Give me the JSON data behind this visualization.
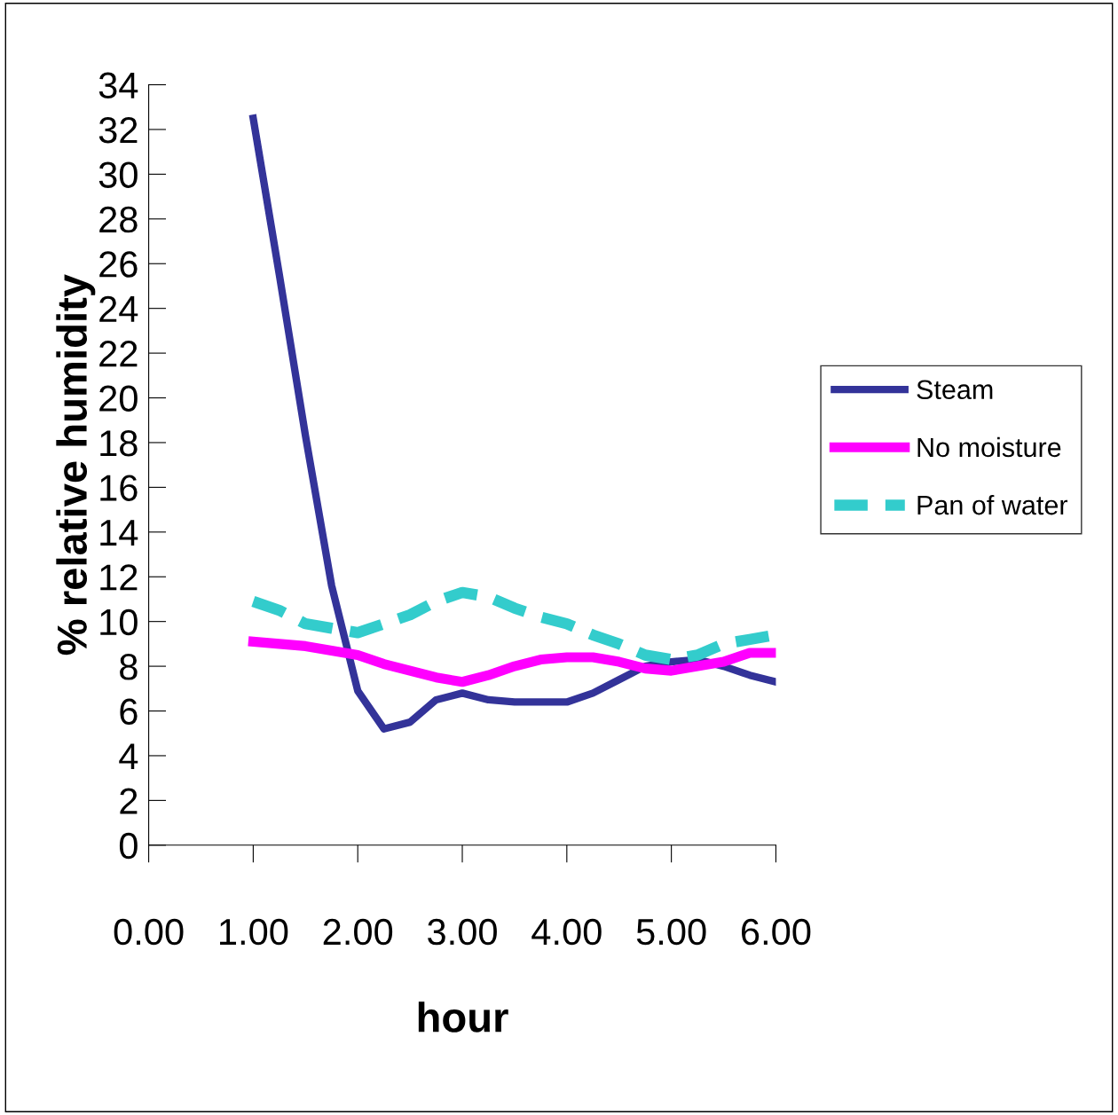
{
  "chart_data": {
    "type": "line",
    "xlabel": "hour",
    "ylabel": "% relative humidity",
    "x": [
      1.0,
      1.25,
      1.5,
      1.75,
      2.0,
      2.25,
      2.5,
      2.75,
      3.0,
      3.25,
      3.5,
      3.75,
      4.0,
      4.25,
      4.5,
      4.75,
      5.0,
      5.25,
      5.5,
      5.75,
      6.0
    ],
    "series": [
      {
        "name": "Steam",
        "color": "#333399",
        "line_style": "solid",
        "values": [
          32.5,
          25.5,
          18.3,
          11.6,
          6.9,
          5.2,
          5.5,
          6.5,
          6.8,
          6.5,
          6.4,
          6.4,
          6.4,
          6.8,
          7.4,
          8.0,
          8.2,
          8.3,
          8.0,
          7.6,
          7.3
        ]
      },
      {
        "name": "No moisture",
        "color": "#ff00ff",
        "line_style": "solid",
        "values": [
          9.1,
          9.0,
          8.9,
          8.7,
          8.5,
          8.1,
          7.8,
          7.5,
          7.3,
          7.6,
          8.0,
          8.3,
          8.4,
          8.4,
          8.2,
          7.9,
          7.8,
          8.0,
          8.2,
          8.6,
          8.6
        ]
      },
      {
        "name": "Pan of water",
        "color": "#33cccc",
        "line_style": "dashed",
        "values": [
          10.9,
          10.5,
          9.9,
          9.7,
          9.5,
          9.9,
          10.3,
          10.9,
          11.3,
          11.1,
          10.6,
          10.2,
          9.9,
          9.4,
          9.0,
          8.5,
          8.3,
          8.5,
          9.0,
          9.2,
          9.4
        ]
      }
    ],
    "xlim": [
      0,
      6
    ],
    "ylim": [
      0,
      34
    ],
    "xticks": [
      {
        "value": 0,
        "label": "0.00"
      },
      {
        "value": 1,
        "label": "1.00"
      },
      {
        "value": 2,
        "label": "2.00"
      },
      {
        "value": 3,
        "label": "3.00"
      },
      {
        "value": 4,
        "label": "4.00"
      },
      {
        "value": 5,
        "label": "5.00"
      },
      {
        "value": 6,
        "label": "6.00"
      }
    ],
    "yticks": [
      0,
      2,
      4,
      6,
      8,
      10,
      12,
      14,
      16,
      18,
      20,
      22,
      24,
      26,
      28,
      30,
      32,
      34
    ],
    "grid": false,
    "legend": "right",
    "marker": "none"
  }
}
